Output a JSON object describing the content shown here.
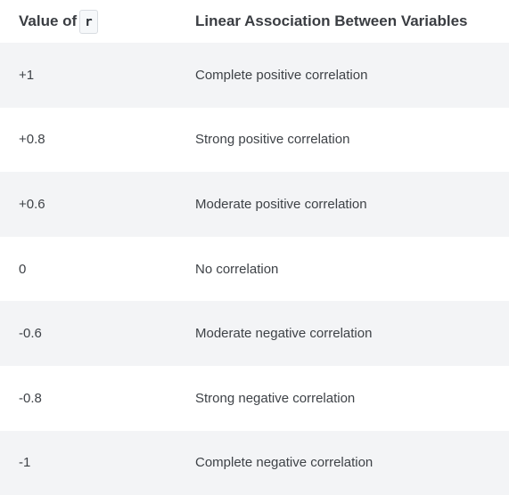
{
  "table": {
    "headers": {
      "col1_text": "Value of",
      "col1_code": "r",
      "col2": "Linear Association Between Variables"
    },
    "rows": [
      {
        "value": "+1",
        "association": "Complete positive correlation"
      },
      {
        "value": "+0.8",
        "association": "Strong positive correlation"
      },
      {
        "value": "+0.6",
        "association": "Moderate positive correlation"
      },
      {
        "value": "0",
        "association": "No correlation"
      },
      {
        "value": "-0.6",
        "association": "Moderate negative correlation"
      },
      {
        "value": "-0.8",
        "association": "Strong negative correlation"
      },
      {
        "value": "-1",
        "association": "Complete negative correlation"
      }
    ]
  }
}
